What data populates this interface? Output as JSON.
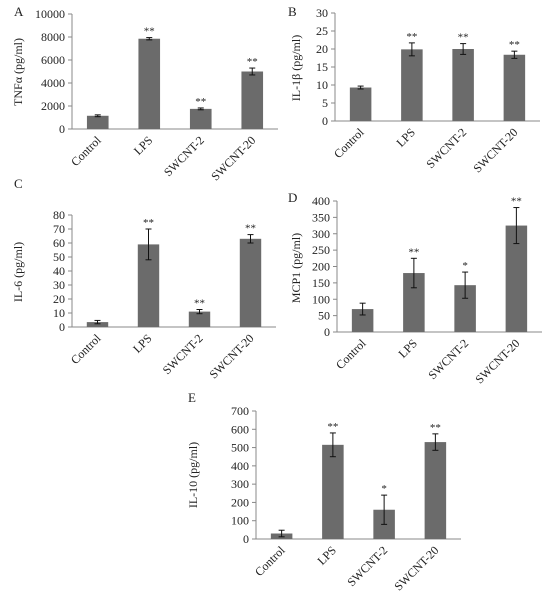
{
  "chart_data": [
    {
      "panel": "A",
      "type": "bar",
      "ylabel": "TNFα (pg/ml)",
      "categories": [
        "Control",
        "LPS",
        "SWCNT-2",
        "SWCNT-20"
      ],
      "values": [
        1150,
        7850,
        1750,
        5000
      ],
      "errors": [
        80,
        100,
        80,
        300
      ],
      "ylim": [
        0,
        10000
      ],
      "yticks": [
        "0",
        "2000",
        "4000",
        "6000",
        "8000",
        "10000"
      ],
      "significance": [
        "",
        "**",
        "**",
        "**"
      ],
      "color": "#6b6b6b"
    },
    {
      "panel": "B",
      "type": "bar",
      "ylabel": "IL-1β (pg/ml)",
      "categories": [
        "Control",
        "LPS",
        "SWCNT-2",
        "SWCNT-20"
      ],
      "values": [
        9.3,
        19.9,
        20.0,
        18.4
      ],
      "errors": [
        0.4,
        1.8,
        1.5,
        1.0
      ],
      "ylim": [
        0,
        30
      ],
      "yticks": [
        "0",
        "5",
        "10",
        "15",
        "20",
        "25",
        "30"
      ],
      "significance": [
        "",
        "**",
        "**",
        "**"
      ],
      "color": "#6b6b6b"
    },
    {
      "panel": "C",
      "type": "bar",
      "ylabel": "IL-6 (pg/ml)",
      "categories": [
        "Control",
        "LPS",
        "SWCNT-2",
        "SWCNT-20"
      ],
      "values": [
        3.5,
        59,
        11,
        63
      ],
      "errors": [
        1.2,
        11,
        1.5,
        3
      ],
      "ylim": [
        0,
        80
      ],
      "yticks": [
        "0",
        "10",
        "20",
        "30",
        "40",
        "50",
        "60",
        "70",
        "80"
      ],
      "significance": [
        "",
        "**",
        "**",
        "**"
      ],
      "color": "#6b6b6b"
    },
    {
      "panel": "D",
      "type": "bar",
      "ylabel": "MCP1 (pg/ml)",
      "categories": [
        "Control",
        "LPS",
        "SWCNT-2",
        "SWCNT-20"
      ],
      "values": [
        70,
        180,
        143,
        325
      ],
      "errors": [
        18,
        45,
        40,
        55
      ],
      "ylim": [
        0,
        400
      ],
      "yticks": [
        "0",
        "50",
        "100",
        "150",
        "200",
        "250",
        "300",
        "350",
        "400"
      ],
      "significance": [
        "",
        "**",
        "*",
        "**"
      ],
      "color": "#6b6b6b"
    },
    {
      "panel": "E",
      "type": "bar",
      "ylabel": "IL-10 (pg/ml)",
      "categories": [
        "Control",
        "LPS",
        "SWCNT-2",
        "SWCNT-20"
      ],
      "values": [
        30,
        515,
        160,
        530
      ],
      "errors": [
        18,
        65,
        80,
        45
      ],
      "ylim": [
        0,
        700
      ],
      "yticks": [
        "0",
        "100",
        "200",
        "300",
        "400",
        "500",
        "600",
        "700"
      ],
      "significance": [
        "",
        "**",
        "*",
        "**"
      ],
      "color": "#6b6b6b"
    }
  ]
}
